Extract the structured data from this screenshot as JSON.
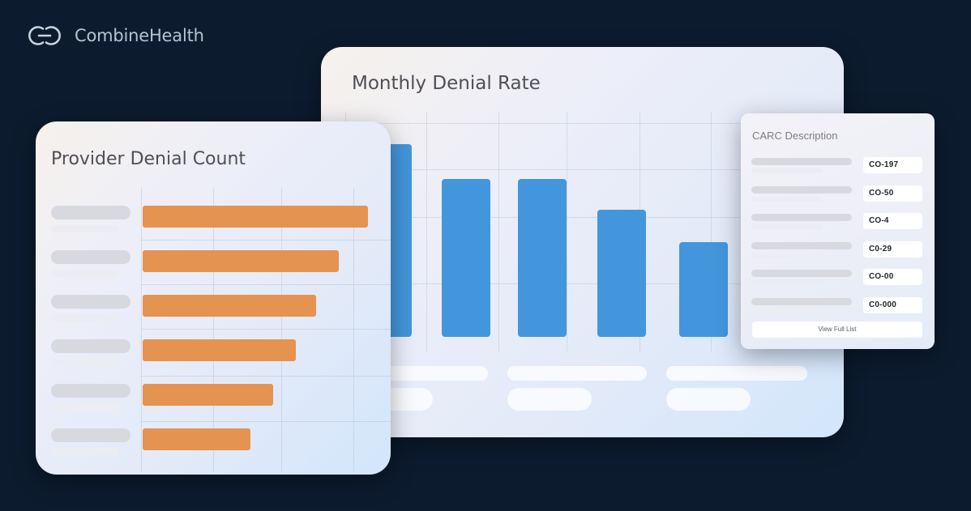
{
  "brand": {
    "name": "CombineHealth"
  },
  "monthly_card": {
    "title": "Monthly Denial Rate",
    "chart_data": {
      "type": "bar",
      "categories": [
        "",
        "",
        "",
        "",
        ""
      ],
      "values": [
        100,
        82,
        82,
        66,
        49
      ],
      "title": "Monthly Denial Rate",
      "xlabel": "",
      "ylabel": "",
      "ylim": [
        0,
        100
      ],
      "bar_color": "#4396db",
      "grid": true
    }
  },
  "provider_card": {
    "title": "Provider Denial Count",
    "chart_data": {
      "type": "bar",
      "orientation": "horizontal",
      "categories": [
        "",
        "",
        "",
        "",
        "",
        ""
      ],
      "values": [
        100,
        87,
        77,
        68,
        58,
        48
      ],
      "title": "Provider Denial Count",
      "xlabel": "",
      "ylabel": "",
      "xlim": [
        0,
        100
      ],
      "bar_color": "#e49351",
      "grid": true
    }
  },
  "carc_card": {
    "title": "CARC Description",
    "codes": [
      "CO-197",
      "CO-50",
      "CO-4",
      "C0-29",
      "CO-00",
      "C0-000"
    ],
    "view_button": "View Full List"
  }
}
